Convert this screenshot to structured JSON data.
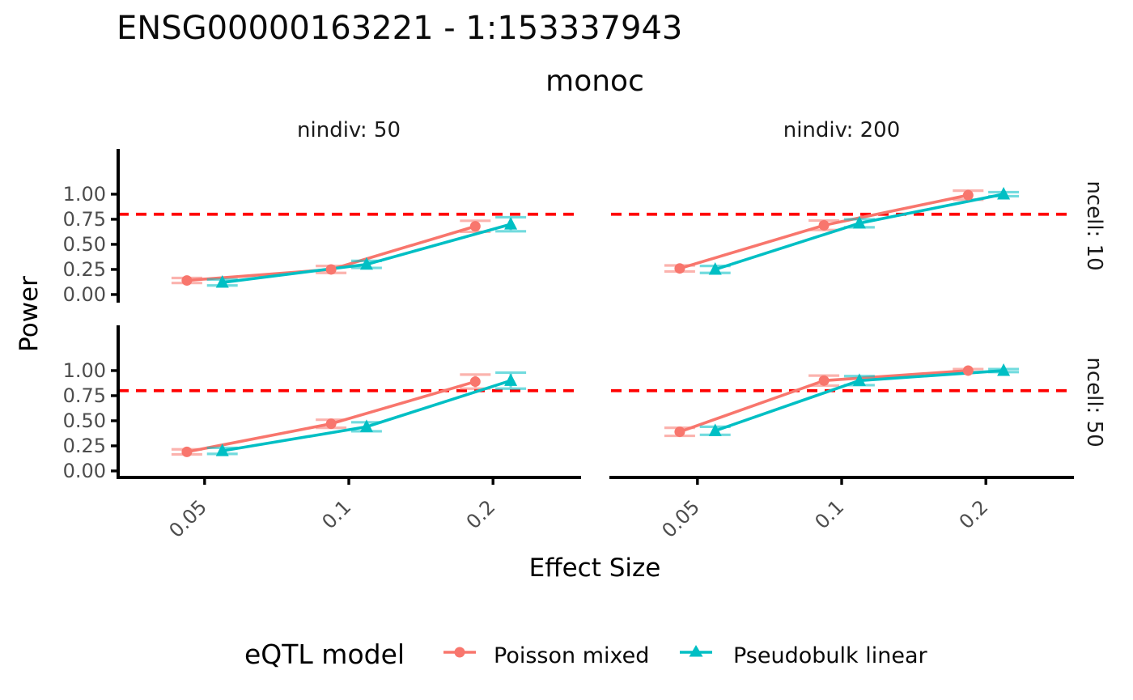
{
  "page": {
    "background": "#ffffff"
  },
  "chart_data": {
    "type": "line",
    "title": "ENSG00000163221 - 1:153337943",
    "subtitle": "monoc",
    "xlabel": "Effect Size",
    "ylabel": "Power",
    "legend_title": "eQTL model",
    "x_scale": "log10",
    "x": [
      0.05,
      0.1,
      0.2
    ],
    "x_ticks": [
      0.05,
      0.1,
      0.2
    ],
    "x_tick_labels": [
      "0.05",
      "0.1",
      "0.2"
    ],
    "y_ticks": [
      0,
      0.25,
      0.5,
      0.75,
      1
    ],
    "y_tick_labels": [
      "0.00",
      "0.25",
      "0.50",
      "0.75",
      "1.00"
    ],
    "xlim": [
      0.033,
      0.303
    ],
    "ylim": [
      -0.065,
      1.435
    ],
    "grid": "off",
    "legend_position": "bottom",
    "hline": {
      "y": 0.8,
      "color": "#FF0000",
      "style": "dashed"
    },
    "col_labels": [
      "nindiv: 50",
      "nindiv: 200"
    ],
    "row_labels": [
      "ncell: 10",
      "ncell: 50"
    ],
    "dodge_log10": 0.037,
    "axis_color": "#000000",
    "tick_label_color": "#4d4d4d",
    "series": [
      {
        "name": "Poisson mixed",
        "color": "#F8766D",
        "marker": "circle"
      },
      {
        "name": "Pseudobulk linear",
        "color": "#00BFC4",
        "marker": "triangle"
      }
    ],
    "panels": [
      {
        "col": "nindiv: 50",
        "row": "ncell: 10",
        "data": [
          {
            "series": "Poisson mixed",
            "y": [
              0.14,
              0.25,
              0.68
            ],
            "err": [
              0.025,
              0.035,
              0.055
            ]
          },
          {
            "series": "Pseudobulk linear",
            "y": [
              0.12,
              0.3,
              0.7
            ],
            "err": [
              0.03,
              0.035,
              0.07
            ]
          }
        ]
      },
      {
        "col": "nindiv: 200",
        "row": "ncell: 10",
        "data": [
          {
            "series": "Poisson mixed",
            "y": [
              0.26,
              0.69,
              0.99
            ],
            "err": [
              0.03,
              0.047,
              0.045
            ]
          },
          {
            "series": "Pseudobulk linear",
            "y": [
              0.25,
              0.71,
              1.0
            ],
            "err": [
              0.035,
              0.04,
              0.02
            ]
          }
        ]
      },
      {
        "col": "nindiv: 50",
        "row": "ncell: 50",
        "data": [
          {
            "series": "Poisson mixed",
            "y": [
              0.19,
              0.47,
              0.89
            ],
            "err": [
              0.025,
              0.04,
              0.07
            ]
          },
          {
            "series": "Pseudobulk linear",
            "y": [
              0.2,
              0.44,
              0.9
            ],
            "err": [
              0.03,
              0.045,
              0.08
            ]
          }
        ]
      },
      {
        "col": "nindiv: 200",
        "row": "ncell: 50",
        "data": [
          {
            "series": "Poisson mixed",
            "y": [
              0.39,
              0.9,
              1.0
            ],
            "err": [
              0.04,
              0.05,
              0.015
            ]
          },
          {
            "series": "Pseudobulk linear",
            "y": [
              0.4,
              0.9,
              1.0
            ],
            "err": [
              0.04,
              0.045,
              0.015
            ]
          }
        ]
      }
    ]
  }
}
